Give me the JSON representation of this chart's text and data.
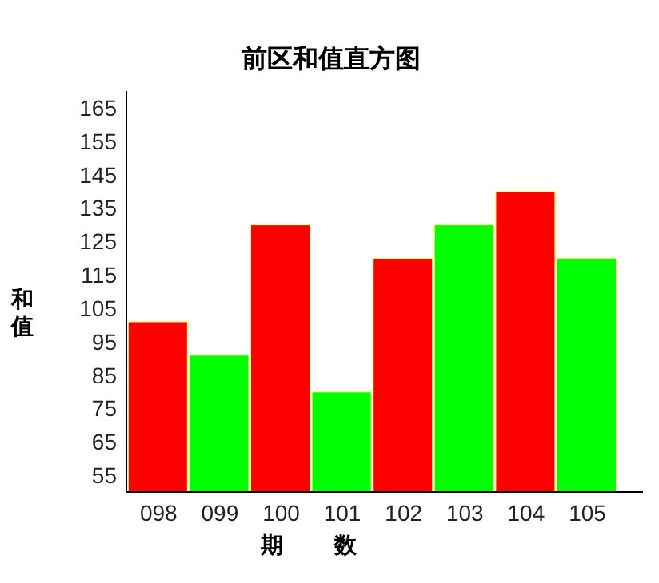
{
  "chart_data": {
    "type": "bar",
    "title": "前区和值直方图",
    "xlabel": "期 数",
    "ylabel": "和值",
    "categories": [
      "098",
      "099",
      "100",
      "101",
      "102",
      "103",
      "104",
      "105"
    ],
    "values": [
      101,
      91,
      130,
      80,
      120,
      130,
      140,
      120
    ],
    "colors": [
      "#ff0000",
      "#00ff00",
      "#ff0000",
      "#00ff00",
      "#ff0000",
      "#00ff00",
      "#ff0000",
      "#00ff00"
    ],
    "ylim": [
      50,
      170
    ],
    "yticks": [
      55,
      65,
      75,
      85,
      95,
      105,
      115,
      125,
      135,
      145,
      155,
      165
    ],
    "grid": false
  }
}
